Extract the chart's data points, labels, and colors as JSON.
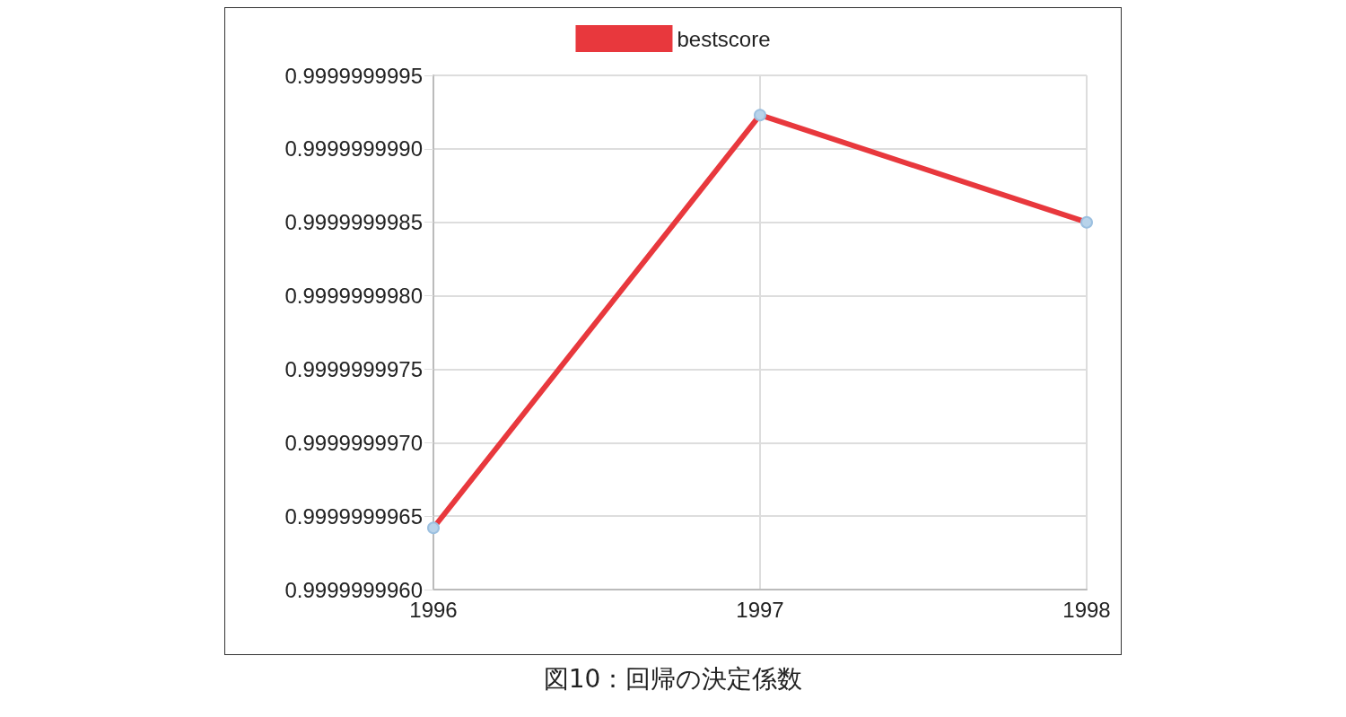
{
  "chart_data": {
    "type": "line",
    "title": "図10：回帰の決定係数",
    "categories": [
      "1996",
      "1997",
      "1998"
    ],
    "series": [
      {
        "name": "bestscore",
        "color": "#e8383d",
        "values": [
          0.99999999642,
          0.99999999923,
          0.9999999985
        ]
      }
    ],
    "ylim": [
      0.999999996,
      0.9999999995
    ],
    "yticks": [
      {
        "value": 0.999999996,
        "label": "0.9999999960"
      },
      {
        "value": 0.9999999965,
        "label": "0.9999999965"
      },
      {
        "value": 0.999999997,
        "label": "0.9999999970"
      },
      {
        "value": 0.9999999975,
        "label": "0.9999999975"
      },
      {
        "value": 0.999999998,
        "label": "0.9999999980"
      },
      {
        "value": 0.9999999985,
        "label": "0.9999999985"
      },
      {
        "value": 0.999999999,
        "label": "0.9999999990"
      },
      {
        "value": 0.9999999995,
        "label": "0.9999999995"
      }
    ],
    "grid": true,
    "legend": "top",
    "marker": "circle",
    "line_style": "solid"
  }
}
